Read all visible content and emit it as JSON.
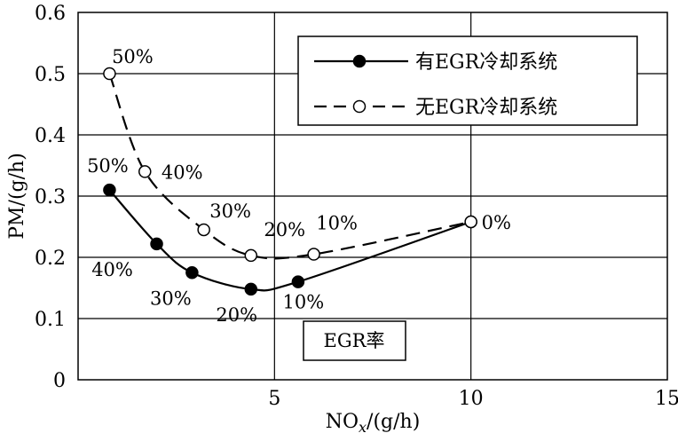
{
  "chart_data": {
    "type": "line",
    "xlabel": "NOx/(g/h)",
    "ylabel": "PM/(g/h)",
    "xlim": [
      0,
      15
    ],
    "ylim": [
      0,
      0.6
    ],
    "x_ticks": [
      "5",
      "10",
      "15"
    ],
    "y_ticks": [
      "0",
      "0.1",
      "0.2",
      "0.3",
      "0.4",
      "0.5",
      "0.6"
    ],
    "grid": "horizontal",
    "legend_position": "top-right",
    "annotation": "EGR率",
    "series": [
      {
        "name": "有EGR冷却系统",
        "line_style": "solid",
        "marker": "filled-circle",
        "points": [
          {
            "x": 0.8,
            "y": 0.31,
            "label": "50%"
          },
          {
            "x": 2.0,
            "y": 0.222,
            "label": "40%"
          },
          {
            "x": 2.9,
            "y": 0.175,
            "label": "30%"
          },
          {
            "x": 4.4,
            "y": 0.148,
            "label": "20%"
          },
          {
            "x": 5.6,
            "y": 0.16,
            "label": "10%"
          },
          {
            "x": 10.0,
            "y": 0.258,
            "label": "0%"
          }
        ]
      },
      {
        "name": "无EGR冷却系统",
        "line_style": "dashed",
        "marker": "open-circle",
        "points": [
          {
            "x": 0.8,
            "y": 0.5,
            "label": "50%"
          },
          {
            "x": 1.7,
            "y": 0.34,
            "label": "40%"
          },
          {
            "x": 3.2,
            "y": 0.245,
            "label": "30%"
          },
          {
            "x": 4.4,
            "y": 0.203,
            "label": "20%"
          },
          {
            "x": 6.0,
            "y": 0.205,
            "label": "10%"
          },
          {
            "x": 10.0,
            "y": 0.258,
            "label": ""
          }
        ]
      }
    ]
  }
}
